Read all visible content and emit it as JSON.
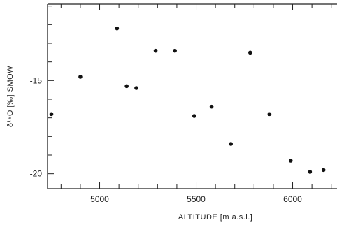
{
  "chart_data": {
    "type": "scatter",
    "xlabel": "ALTITUDE  [m a.s.l.]",
    "ylabel": "δ¹⁸O [‰] SMOW",
    "xlim": [
      4730,
      6230
    ],
    "ylim": [
      -20.8,
      -10.9
    ],
    "x_ticks": [
      5000,
      5500,
      6000
    ],
    "x_tick_labels": [
      "5000",
      "5500",
      "6000"
    ],
    "x_minor_step": 100,
    "y_ticks": [
      -15,
      -20
    ],
    "y_tick_labels": [
      "-15",
      "-20"
    ],
    "y_minor_step": 1,
    "grid": false,
    "points": [
      {
        "x": 4750,
        "y": -16.8
      },
      {
        "x": 4900,
        "y": -14.8
      },
      {
        "x": 5090,
        "y": -12.2
      },
      {
        "x": 5140,
        "y": -15.3
      },
      {
        "x": 5190,
        "y": -15.4
      },
      {
        "x": 5290,
        "y": -13.4
      },
      {
        "x": 5390,
        "y": -13.4
      },
      {
        "x": 5490,
        "y": -16.9
      },
      {
        "x": 5580,
        "y": -16.4
      },
      {
        "x": 5680,
        "y": -18.4
      },
      {
        "x": 5780,
        "y": -13.5
      },
      {
        "x": 5880,
        "y": -16.8
      },
      {
        "x": 5990,
        "y": -19.3
      },
      {
        "x": 6090,
        "y": -19.9
      },
      {
        "x": 6160,
        "y": -19.8
      }
    ],
    "colors": {
      "axis": "#222222",
      "marker": "#111111"
    }
  }
}
